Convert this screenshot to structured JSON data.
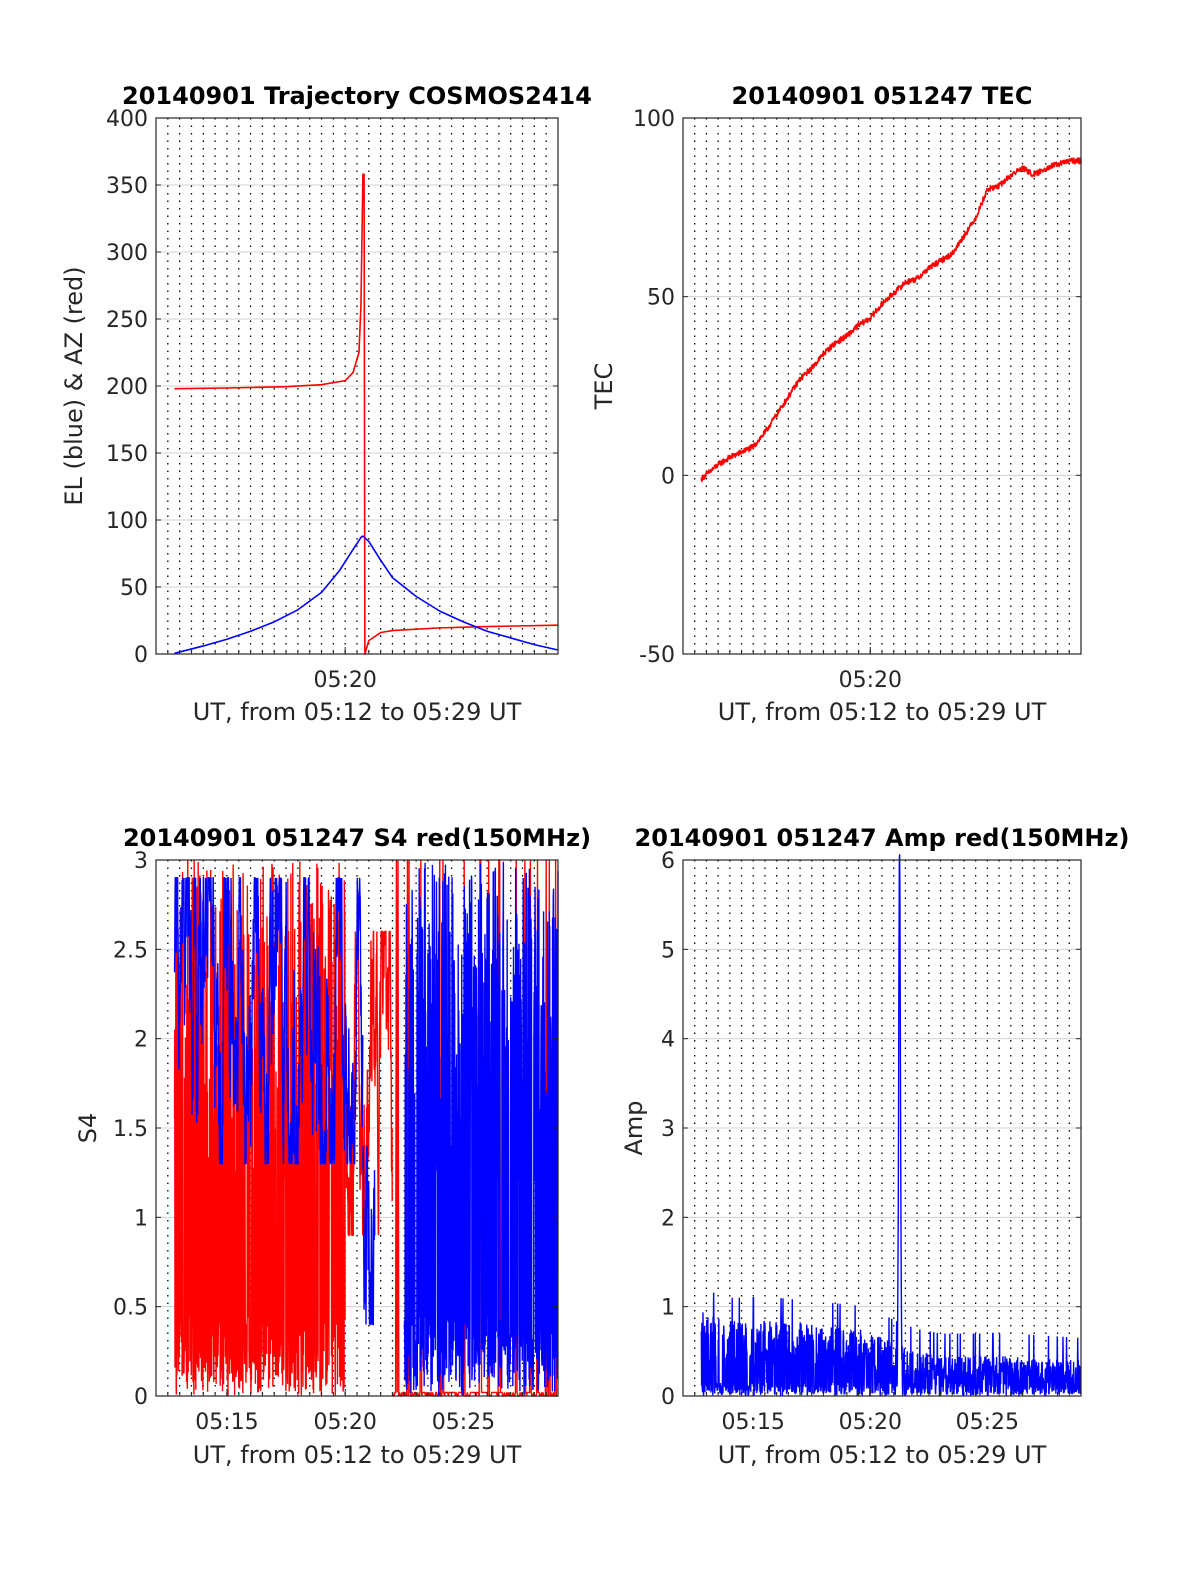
{
  "colors": {
    "red": "#ff0000",
    "blue": "#0000ff",
    "grid": "#d0d0d0",
    "axis": "#262626"
  },
  "chart_data": [
    {
      "id": "trajectory",
      "type": "line",
      "title": "20140901 Trajectory COSMOS2414",
      "xlabel": "UT, from 05:12 to 05:29 UT",
      "ylabel": "EL (blue) & AZ (red)",
      "xlim": [
        "05:12",
        "05:29"
      ],
      "ylim": [
        0,
        400
      ],
      "yticks": [
        0,
        50,
        100,
        150,
        200,
        250,
        300,
        350,
        400
      ],
      "xticks": [
        {
          "t": "05:20",
          "label": "05:20"
        }
      ],
      "vgrid": "dotted every 30 s",
      "series": [
        {
          "color": "red",
          "points": [
            [
              "05:12:47",
              198
            ],
            [
              "05:15:00",
              198.5
            ],
            [
              "05:17:30",
              199.5
            ],
            [
              "05:19:00",
              201
            ],
            [
              "05:20:00",
              204
            ],
            [
              "05:20:20",
              210
            ],
            [
              "05:20:35",
              225
            ],
            [
              "05:20:40",
              260
            ],
            [
              "05:20:45",
              358
            ],
            [
              "05:20:48",
              358
            ],
            [
              "05:20:50",
              0
            ],
            [
              "05:21:00",
              10
            ],
            [
              "05:21:30",
              16
            ],
            [
              "05:22:00",
              17.5
            ],
            [
              "05:24:00",
              19.5
            ],
            [
              "05:26:00",
              20.5
            ],
            [
              "05:29:00",
              21.5
            ]
          ]
        },
        {
          "color": "blue",
          "points": [
            [
              "05:12:47",
              0.5
            ],
            [
              "05:14:00",
              6
            ],
            [
              "05:15:00",
              11
            ],
            [
              "05:16:00",
              17
            ],
            [
              "05:17:00",
              24
            ],
            [
              "05:18:00",
              33
            ],
            [
              "05:19:00",
              46
            ],
            [
              "05:19:45",
              62
            ],
            [
              "05:20:20",
              78
            ],
            [
              "05:20:40",
              87
            ],
            [
              "05:20:45",
              88
            ],
            [
              "05:21:00",
              84
            ],
            [
              "05:21:30",
              70
            ],
            [
              "05:22:00",
              57
            ],
            [
              "05:23:00",
              43
            ],
            [
              "05:24:00",
              32
            ],
            [
              "05:25:00",
              24
            ],
            [
              "05:26:00",
              17
            ],
            [
              "05:27:00",
              12
            ],
            [
              "05:28:00",
              7
            ],
            [
              "05:29:00",
              3
            ]
          ]
        }
      ]
    },
    {
      "id": "tec",
      "type": "line",
      "title": "20140901 051247 TEC",
      "xlabel": "UT, from 05:12 to 05:29 UT",
      "ylabel": "TEC",
      "xlim": [
        "05:12",
        "05:29"
      ],
      "ylim": [
        -50,
        100
      ],
      "yticks": [
        -50,
        0,
        50,
        100
      ],
      "xticks": [
        {
          "t": "05:20",
          "label": "05:20"
        }
      ],
      "vgrid": "dotted every 30 s",
      "series": [
        {
          "color": "red",
          "noise": 0.8,
          "points": [
            [
              "05:12:47",
              -1
            ],
            [
              "05:13:30",
              3
            ],
            [
              "05:14:00",
              5
            ],
            [
              "05:15:00",
              8
            ],
            [
              "05:15:30",
              12
            ],
            [
              "05:16:00",
              17
            ],
            [
              "05:16:30",
              22
            ],
            [
              "05:17:00",
              27
            ],
            [
              "05:17:30",
              30
            ],
            [
              "05:18:00",
              34
            ],
            [
              "05:18:30",
              37
            ],
            [
              "05:19:00",
              39
            ],
            [
              "05:19:30",
              42
            ],
            [
              "05:20:00",
              44
            ],
            [
              "05:20:30",
              48
            ],
            [
              "05:21:00",
              51
            ],
            [
              "05:21:30",
              54
            ],
            [
              "05:22:00",
              55
            ],
            [
              "05:22:30",
              58
            ],
            [
              "05:23:00",
              60
            ],
            [
              "05:23:30",
              62
            ],
            [
              "05:24:00",
              67
            ],
            [
              "05:24:30",
              72
            ],
            [
              "05:25:00",
              80
            ],
            [
              "05:25:30",
              81
            ],
            [
              "05:26:00",
              84
            ],
            [
              "05:26:30",
              86
            ],
            [
              "05:27:00",
              84
            ],
            [
              "05:27:30",
              86
            ],
            [
              "05:28:00",
              87
            ],
            [
              "05:28:30",
              88
            ],
            [
              "05:29:00",
              88
            ]
          ]
        }
      ]
    },
    {
      "id": "s4",
      "type": "line",
      "title": "20140901 051247 S4 red(150MHz)",
      "xlabel": "UT, from 05:12 to 05:29 UT",
      "ylabel": "S4",
      "xlim": [
        "05:12",
        "05:29"
      ],
      "ylim": [
        0,
        3
      ],
      "yticks": [
        0,
        0.5,
        1,
        1.5,
        2,
        2.5,
        3
      ],
      "xticks": [
        {
          "t": "05:15",
          "label": "05:15"
        },
        {
          "t": "05:20",
          "label": "05:20"
        },
        {
          "t": "05:25",
          "label": "05:25"
        }
      ],
      "vgrid": "dotted every 30 s",
      "series": [
        {
          "color": "red",
          "segments": [
            {
              "from": "05:12:47",
              "to": "05:20:00",
              "low": 0,
              "high": 3,
              "note": "dense oscillation between 0 and 3"
            },
            {
              "from": "05:20:00",
              "to": "05:22:00",
              "low": 0.9,
              "high": 2.6
            },
            {
              "from": "05:22:00",
              "to": "05:29:00",
              "low": 0,
              "high": 3,
              "note": "sparse spikes"
            }
          ]
        },
        {
          "color": "blue",
          "segments": [
            {
              "from": "05:12:47",
              "to": "05:20:45",
              "low": 1.3,
              "high": 2.9
            },
            {
              "from": "05:20:45",
              "to": "05:21:15",
              "low": 0.4,
              "high": 1.4
            },
            {
              "from": "05:22:30",
              "to": "05:29:00",
              "low": 0,
              "high": 3,
              "note": "dense oscillation between 0 and 3"
            }
          ]
        }
      ]
    },
    {
      "id": "amp",
      "type": "line",
      "title": "20140901 051247 Amp red(150MHz)",
      "xlabel": "UT, from 05:12 to 05:29 UT",
      "ylabel": "Amp",
      "xlim": [
        "05:12",
        "05:29"
      ],
      "ylim": [
        0,
        6
      ],
      "yticks": [
        0,
        1,
        2,
        3,
        4,
        5,
        6
      ],
      "xticks": [
        {
          "t": "05:15",
          "label": "05:15"
        },
        {
          "t": "05:20",
          "label": "05:20"
        },
        {
          "t": "05:25",
          "label": "05:25"
        }
      ],
      "vgrid": "dotted every 30 s",
      "series": [
        {
          "color": "blue",
          "baseline": 0,
          "envelope": [
            [
              "05:12:47",
              0.95
            ],
            [
              "05:14:00",
              0.85
            ],
            [
              "05:16:00",
              0.85
            ],
            [
              "05:18:00",
              0.8
            ],
            [
              "05:20:00",
              0.75
            ],
            [
              "05:21:00",
              0.6
            ],
            [
              "05:22:00",
              0.5
            ],
            [
              "05:23:00",
              0.45
            ],
            [
              "05:24:00",
              0.45
            ],
            [
              "05:26:00",
              0.45
            ],
            [
              "05:29:00",
              0.4
            ]
          ],
          "peak": {
            "t": "05:21:15",
            "value": 5.9
          }
        }
      ]
    }
  ]
}
